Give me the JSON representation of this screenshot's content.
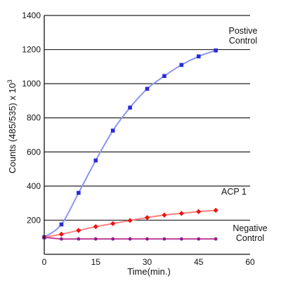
{
  "chart_data": {
    "type": "line",
    "title": "",
    "xlabel": "Time(min.)",
    "ylabel": "Counts (485/535) x 10",
    "ylabel_sup": "3",
    "xlim": [
      0,
      60
    ],
    "ylim": [
      0,
      1400
    ],
    "xticks": [
      0,
      15,
      30,
      45,
      60
    ],
    "yticks": [
      200,
      400,
      600,
      800,
      1000,
      1200,
      1400
    ],
    "xtick_labels": [
      "0",
      "15",
      "30",
      "45",
      "60"
    ],
    "ytick_labels": [
      "200",
      "400",
      "600",
      "800",
      "1000",
      "1200",
      "1400"
    ],
    "grid": "horizontal",
    "legend": "none (inline labels at right end of each series)",
    "series": [
      {
        "name": "Postive Control",
        "label_lines": [
          "Postive",
          "Control"
        ],
        "line_color": "#8b95f2",
        "marker_color": "#2b2bd9",
        "marker": "square",
        "x": [
          0,
          5,
          10,
          15,
          20,
          25,
          30,
          35,
          40,
          45,
          50
        ],
        "y": [
          100,
          175,
          360,
          550,
          725,
          860,
          970,
          1045,
          1110,
          1160,
          1195
        ]
      },
      {
        "name": "ACP 1",
        "label_lines": [
          "ACP 1"
        ],
        "line_color": "#ff8080",
        "marker_color": "#ee1111",
        "marker": "diamond",
        "x": [
          0,
          5,
          10,
          15,
          20,
          25,
          30,
          35,
          40,
          45,
          50
        ],
        "y": [
          100,
          118,
          140,
          162,
          180,
          198,
          215,
          230,
          240,
          250,
          258
        ]
      },
      {
        "name": "Negative Control",
        "label_lines": [
          "Negative",
          "Control"
        ],
        "line_color": "#c0409a",
        "marker_color": "#8a1f86",
        "marker": "circle",
        "x": [
          0,
          5,
          10,
          15,
          20,
          25,
          30,
          35,
          40,
          45,
          50
        ],
        "y": [
          100,
          90,
          90,
          90,
          90,
          90,
          90,
          90,
          90,
          90,
          90
        ]
      }
    ]
  }
}
